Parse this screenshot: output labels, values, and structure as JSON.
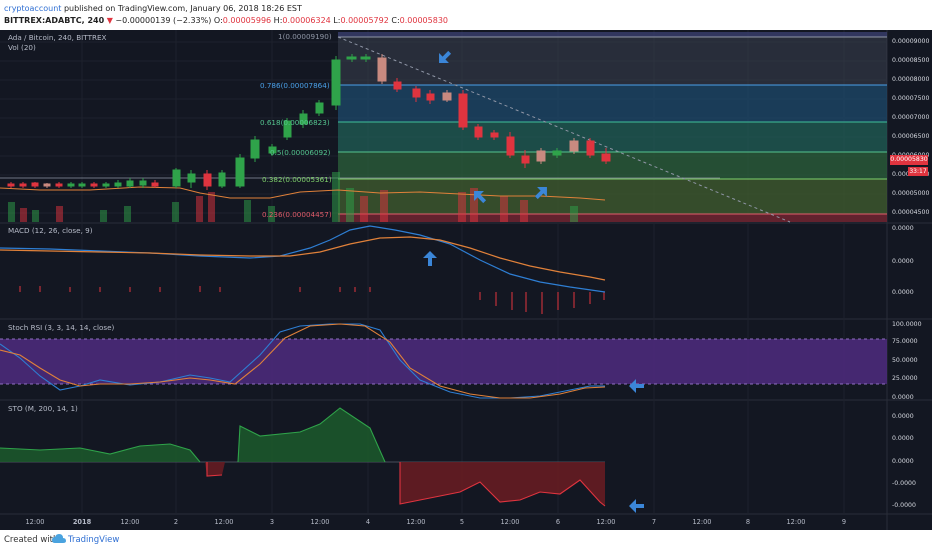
{
  "header": {
    "publisher": "cryptoaccount",
    "published_text": " published on TradingView.com, January 06, 2018 18:26 EST",
    "symbol": "BITTREX:ADABTC, 240",
    "change_arrow": "▼",
    "change": "−0.00000139 (−2.33%)",
    "o_label": "O:",
    "o_value": "0.00005996",
    "h_label": "H:",
    "h_value": "0.00006324",
    "l_label": "L:",
    "l_value": "0.00005792",
    "c_label": "C:",
    "c_value": "0.00005830"
  },
  "price_panel": {
    "title": "Ada / Bitcoin, 240, BITTREX",
    "volume_label": "Vol (20)",
    "fib_levels": [
      {
        "label": "1(0.00009190)",
        "color": "#8f96a6"
      },
      {
        "label": "0.786(0.00007864)",
        "color": "#4aa0e8"
      },
      {
        "label": "0.618(0.00006823)",
        "color": "#55c48f"
      },
      {
        "label": "0.5(0.00006092)",
        "color": "#55c48f"
      },
      {
        "label": "0.382(0.00005361)",
        "color": "#7fd16b"
      },
      {
        "label": "0.236(0.00004457)",
        "color": "#e05c6a"
      }
    ],
    "axis_labels": [
      "0.00009000",
      "0.00008500",
      "0.00008000",
      "0.00007500",
      "0.00007000",
      "0.00006500",
      "0.00006000",
      "0.00005500",
      "0.00005000",
      "0.00004500"
    ],
    "last_price": "0.00005830",
    "countdown": "33:17"
  },
  "macd_panel": {
    "title": "MACD (12, 26, close, 9)",
    "axis_labels": [
      "0.0000",
      "0.0000",
      "0.0000"
    ]
  },
  "stoch_panel": {
    "title": "Stoch RSI (3, 3, 14, 14, close)",
    "axis_labels": [
      "100.0000",
      "75.0000",
      "50.0000",
      "25.0000",
      "0.0000"
    ]
  },
  "sto_panel": {
    "title": "STO (M, 200, 14, 1)",
    "axis_labels": [
      "0.0000",
      "0.0000",
      "0.0000",
      "-0.0000",
      "-0.0000"
    ]
  },
  "time_axis": [
    "12:00",
    "2018",
    "12:00",
    "2",
    "12:00",
    "3",
    "12:00",
    "4",
    "12:00",
    "5",
    "12:00",
    "6",
    "12:00",
    "7",
    "12:00",
    "8",
    "12:00",
    "9"
  ],
  "footer": {
    "created_with": "Created with",
    "brand": "TradingView"
  },
  "colors": {
    "up": "#2fa34a",
    "down": "#e0343f",
    "macd": "#2e7ed3",
    "signal": "#e0813a",
    "arrow": "#3b86d8"
  }
}
